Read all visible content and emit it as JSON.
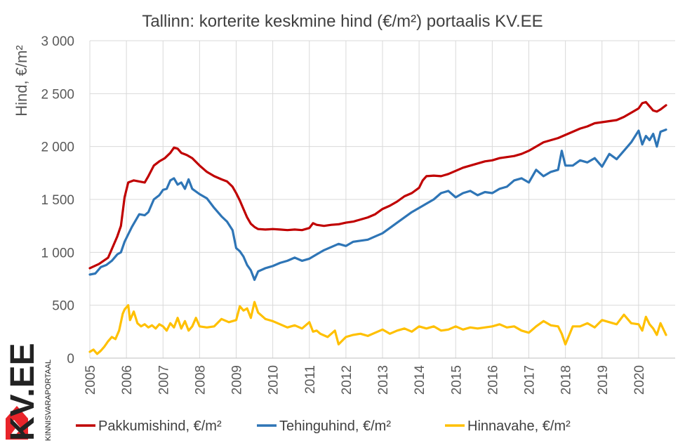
{
  "chart_data": {
    "type": "line",
    "title": "Tallinn: korterite keskmine hind (€/m²) portaalis KV.EE",
    "ylabel": "Hind, €/m²",
    "xlabel": "",
    "ylim": [
      0,
      3000
    ],
    "y_ticks": [
      "0",
      "500",
      "1 000",
      "1 500",
      "2 000",
      "2 500",
      "3 000"
    ],
    "y_tick_values": [
      0,
      500,
      1000,
      1500,
      2000,
      2500,
      3000
    ],
    "x_range": [
      2005,
      2021
    ],
    "x_ticks": [
      "2005",
      "2006",
      "2007",
      "2008",
      "2009",
      "2010",
      "2011",
      "2012",
      "2013",
      "2014",
      "2015",
      "2016",
      "2017",
      "2018",
      "2019",
      "2020"
    ],
    "grid": true,
    "legend_position": "bottom",
    "series": [
      {
        "name": "Pakkumishind, €/m²",
        "color": "#c00000",
        "x": [
          2005,
          2005.25,
          2005.5,
          2005.75,
          2005.85,
          2005.95,
          2006.05,
          2006.2,
          2006.35,
          2006.5,
          2006.6,
          2006.75,
          2006.9,
          2007.05,
          2007.2,
          2007.3,
          2007.4,
          2007.5,
          2007.65,
          2007.8,
          2008,
          2008.2,
          2008.4,
          2008.6,
          2008.75,
          2008.9,
          2009,
          2009.1,
          2009.2,
          2009.3,
          2009.4,
          2009.5,
          2009.6,
          2009.8,
          2010,
          2010.2,
          2010.4,
          2010.6,
          2010.8,
          2011,
          2011.1,
          2011.2,
          2011.4,
          2011.6,
          2011.8,
          2012,
          2012.2,
          2012.4,
          2012.6,
          2012.8,
          2013,
          2013.2,
          2013.4,
          2013.6,
          2013.8,
          2014,
          2014.1,
          2014.2,
          2014.4,
          2014.6,
          2014.8,
          2015,
          2015.2,
          2015.4,
          2015.6,
          2015.8,
          2016,
          2016.2,
          2016.4,
          2016.6,
          2016.8,
          2017,
          2017.2,
          2017.4,
          2017.6,
          2017.8,
          2018,
          2018.2,
          2018.4,
          2018.6,
          2018.8,
          2019,
          2019.2,
          2019.4,
          2019.6,
          2019.8,
          2020,
          2020.1,
          2020.2,
          2020.3,
          2020.4,
          2020.5,
          2020.6,
          2020.75
        ],
        "values": [
          850,
          890,
          950,
          1150,
          1250,
          1520,
          1660,
          1680,
          1670,
          1660,
          1720,
          1820,
          1860,
          1890,
          1940,
          1990,
          1980,
          1940,
          1920,
          1890,
          1820,
          1760,
          1720,
          1690,
          1670,
          1620,
          1560,
          1490,
          1410,
          1330,
          1270,
          1240,
          1220,
          1215,
          1220,
          1215,
          1210,
          1215,
          1210,
          1230,
          1275,
          1260,
          1250,
          1260,
          1265,
          1280,
          1290,
          1310,
          1330,
          1360,
          1410,
          1440,
          1480,
          1530,
          1560,
          1610,
          1680,
          1720,
          1725,
          1720,
          1740,
          1770,
          1800,
          1820,
          1840,
          1860,
          1870,
          1890,
          1900,
          1910,
          1930,
          1960,
          2000,
          2040,
          2060,
          2080,
          2110,
          2140,
          2170,
          2190,
          2220,
          2230,
          2240,
          2250,
          2280,
          2320,
          2360,
          2410,
          2420,
          2380,
          2340,
          2330,
          2350,
          2390
        ]
      },
      {
        "name": "Tehinguhind, €/m²",
        "color": "#2e75b6",
        "x": [
          2005,
          2005.15,
          2005.3,
          2005.45,
          2005.6,
          2005.75,
          2005.85,
          2005.95,
          2006.05,
          2006.15,
          2006.25,
          2006.35,
          2006.5,
          2006.6,
          2006.75,
          2006.9,
          2007,
          2007.1,
          2007.2,
          2007.3,
          2007.4,
          2007.5,
          2007.6,
          2007.7,
          2007.8,
          2008,
          2008.2,
          2008.4,
          2008.6,
          2008.75,
          2008.9,
          2009,
          2009.1,
          2009.2,
          2009.3,
          2009.4,
          2009.5,
          2009.6,
          2009.8,
          2010,
          2010.2,
          2010.4,
          2010.6,
          2010.8,
          2011,
          2011.2,
          2011.4,
          2011.6,
          2011.8,
          2012,
          2012.2,
          2012.4,
          2012.6,
          2012.8,
          2013,
          2013.2,
          2013.4,
          2013.6,
          2013.8,
          2014,
          2014.2,
          2014.4,
          2014.6,
          2014.8,
          2015,
          2015.2,
          2015.4,
          2015.6,
          2015.8,
          2016,
          2016.2,
          2016.4,
          2016.6,
          2016.8,
          2017,
          2017.2,
          2017.4,
          2017.6,
          2017.8,
          2017.9,
          2018,
          2018.2,
          2018.4,
          2018.6,
          2018.8,
          2019,
          2019.2,
          2019.4,
          2019.6,
          2019.8,
          2020,
          2020.1,
          2020.2,
          2020.3,
          2020.4,
          2020.5,
          2020.6,
          2020.75
        ],
        "values": [
          790,
          800,
          860,
          880,
          920,
          980,
          1000,
          1100,
          1170,
          1240,
          1300,
          1360,
          1350,
          1380,
          1500,
          1540,
          1590,
          1600,
          1680,
          1700,
          1640,
          1660,
          1600,
          1690,
          1600,
          1550,
          1510,
          1420,
          1340,
          1290,
          1210,
          1040,
          1010,
          960,
          880,
          830,
          740,
          820,
          850,
          870,
          900,
          920,
          950,
          920,
          940,
          980,
          1020,
          1050,
          1080,
          1060,
          1100,
          1110,
          1120,
          1150,
          1180,
          1230,
          1280,
          1330,
          1380,
          1420,
          1460,
          1500,
          1560,
          1580,
          1520,
          1560,
          1580,
          1540,
          1570,
          1560,
          1600,
          1620,
          1680,
          1700,
          1660,
          1780,
          1720,
          1760,
          1780,
          1960,
          1820,
          1820,
          1870,
          1850,
          1890,
          1810,
          1930,
          1880,
          1960,
          2040,
          2150,
          2020,
          2100,
          2060,
          2120,
          2000,
          2140,
          2160
        ]
      },
      {
        "name": "Hinnavahe, €/m²",
        "color": "#ffc000",
        "x": [
          2005,
          2005.1,
          2005.2,
          2005.3,
          2005.4,
          2005.5,
          2005.6,
          2005.7,
          2005.8,
          2005.9,
          2005.95,
          2006.05,
          2006.1,
          2006.2,
          2006.3,
          2006.4,
          2006.5,
          2006.6,
          2006.7,
          2006.8,
          2006.9,
          2007,
          2007.1,
          2007.2,
          2007.3,
          2007.4,
          2007.5,
          2007.6,
          2007.7,
          2007.8,
          2007.9,
          2008,
          2008.2,
          2008.4,
          2008.6,
          2008.8,
          2009,
          2009.1,
          2009.2,
          2009.3,
          2009.4,
          2009.5,
          2009.6,
          2009.8,
          2010,
          2010.2,
          2010.4,
          2010.6,
          2010.8,
          2011,
          2011.1,
          2011.2,
          2011.3,
          2011.5,
          2011.7,
          2011.8,
          2012,
          2012.2,
          2012.4,
          2012.6,
          2012.8,
          2013,
          2013.2,
          2013.4,
          2013.6,
          2013.8,
          2014,
          2014.2,
          2014.4,
          2014.6,
          2014.8,
          2015,
          2015.2,
          2015.4,
          2015.6,
          2015.8,
          2016,
          2016.2,
          2016.4,
          2016.6,
          2016.8,
          2017,
          2017.2,
          2017.4,
          2017.6,
          2017.8,
          2017.9,
          2018,
          2018.2,
          2018.4,
          2018.6,
          2018.8,
          2019,
          2019.2,
          2019.4,
          2019.6,
          2019.8,
          2020,
          2020.1,
          2020.2,
          2020.3,
          2020.4,
          2020.5,
          2020.6,
          2020.75
        ],
        "values": [
          60,
          80,
          40,
          70,
          110,
          160,
          200,
          180,
          260,
          420,
          460,
          500,
          360,
          440,
          330,
          300,
          320,
          290,
          310,
          280,
          320,
          300,
          260,
          330,
          290,
          380,
          280,
          350,
          260,
          300,
          380,
          300,
          290,
          300,
          370,
          340,
          360,
          490,
          450,
          470,
          380,
          530,
          430,
          370,
          350,
          320,
          290,
          310,
          280,
          340,
          250,
          260,
          230,
          200,
          260,
          130,
          200,
          220,
          230,
          210,
          240,
          270,
          230,
          260,
          280,
          250,
          300,
          280,
          300,
          260,
          270,
          300,
          270,
          290,
          280,
          290,
          300,
          320,
          290,
          300,
          260,
          240,
          300,
          350,
          310,
          300,
          230,
          130,
          300,
          300,
          330,
          290,
          360,
          340,
          320,
          410,
          330,
          320,
          260,
          390,
          320,
          280,
          220,
          330,
          220
        ]
      }
    ]
  },
  "logo": {
    "brand": "KV.EE",
    "tagline": "KINNISVARAPORTAAL"
  }
}
